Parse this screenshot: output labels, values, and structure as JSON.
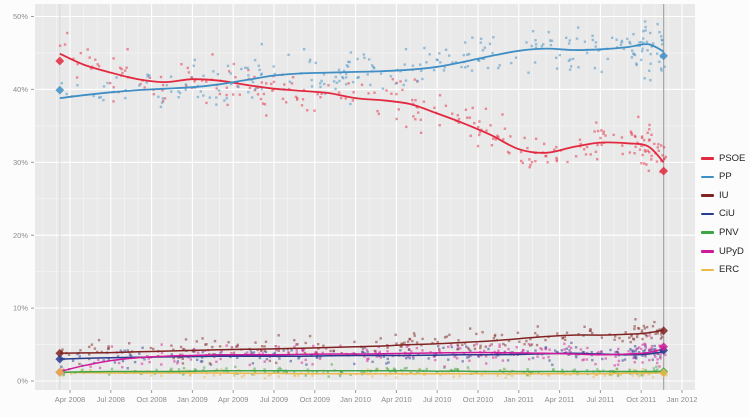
{
  "colors": {
    "figure_bg": "#fcfcfc",
    "panel_bg": "#e9e9e9",
    "grid_major": "#ffffff",
    "grid_minor": "#f3f3f3",
    "axis_text": "#8c8c8c",
    "tick_mark": "#9a9a9a",
    "legend_text": "#222222",
    "ref_line_start": "#dcdcdc",
    "ref_line_end": "#a8a8a8"
  },
  "axes": {
    "y_tick_labels": [
      "0%",
      "10%",
      "20%",
      "30%",
      "40%",
      "50%"
    ],
    "y_tick_values": [
      0,
      10,
      20,
      30,
      40,
      50
    ],
    "x_tick_labels": [
      "Apr 2008",
      "Jul 2008",
      "Oct 2008",
      "Jan 2009",
      "Apr 2009",
      "Jul 2009",
      "Oct 2009",
      "Jan 2010",
      "Apr 2010",
      "Jul 2010",
      "Oct 2010",
      "Jan 2011",
      "Apr 2011",
      "Jul 2011",
      "Oct 2011",
      "Jan 2012"
    ],
    "x_tick_months": [
      0,
      3,
      6,
      9,
      12,
      15,
      18,
      21,
      24,
      27,
      30,
      33,
      36,
      39,
      42,
      45
    ]
  },
  "chart_data": {
    "type": "scatter",
    "title": "",
    "xlabel": "",
    "ylabel": "",
    "ylim": [
      0,
      52
    ],
    "x_axis": "months since April 2008 (poll dates, Apr 2008 - Nov 2011)",
    "legend_position": "right",
    "grid": true,
    "election_markers": {
      "start_month": -0.75,
      "end_month": 43.65
    },
    "trend_months": [
      -0.75,
      1,
      3,
      5,
      7,
      9,
      11,
      13,
      15,
      17,
      19,
      21,
      23,
      25,
      27,
      29,
      31,
      33,
      35,
      37,
      39,
      41,
      42.5,
      43.65
    ],
    "series": [
      {
        "name": "PSOE",
        "color": "#e32940",
        "sigma": 1.5,
        "n_points": 240,
        "n_end_cluster": 30,
        "trend_values": [
          44.9,
          43.4,
          42.3,
          41.4,
          41.0,
          41.4,
          41.2,
          40.6,
          40.1,
          39.8,
          39.5,
          38.8,
          38.5,
          38.0,
          36.7,
          35.3,
          33.7,
          31.8,
          31.3,
          32.1,
          32.7,
          32.6,
          32.2,
          30.0
        ],
        "election_2008": 43.9,
        "election_2011": 28.8
      },
      {
        "name": "PP",
        "color": "#3f8fc5",
        "sigma": 1.5,
        "n_points": 240,
        "n_end_cluster": 30,
        "trend_values": [
          38.8,
          39.2,
          39.6,
          39.9,
          40.1,
          40.3,
          40.7,
          41.3,
          41.9,
          42.2,
          42.3,
          42.4,
          42.5,
          42.7,
          43.1,
          43.8,
          44.6,
          45.3,
          45.6,
          45.4,
          45.5,
          45.8,
          46.2,
          45.2
        ],
        "election_2008": 39.9,
        "election_2011": 44.6
      },
      {
        "name": "IU",
        "color": "#802422",
        "sigma": 0.75,
        "n_points": 190,
        "n_end_cluster": 25,
        "trend_values": [
          3.8,
          3.85,
          3.9,
          4.0,
          4.1,
          4.2,
          4.3,
          4.35,
          4.4,
          4.5,
          4.6,
          4.7,
          4.8,
          5.0,
          5.1,
          5.3,
          5.5,
          5.8,
          6.1,
          6.3,
          6.3,
          6.4,
          6.6,
          7.0
        ],
        "election_2008": 3.8,
        "election_2011": 6.9
      },
      {
        "name": "CiU",
        "color": "#283c8f",
        "sigma": 0.6,
        "n_points": 160,
        "n_end_cluster": 20,
        "trend_values": [
          3.0,
          3.1,
          3.2,
          3.25,
          3.3,
          3.35,
          3.4,
          3.4,
          3.4,
          3.4,
          3.45,
          3.5,
          3.5,
          3.5,
          3.55,
          3.6,
          3.6,
          3.65,
          3.75,
          3.8,
          3.7,
          3.6,
          3.7,
          4.0
        ],
        "election_2008": 3.0,
        "election_2011": 4.2
      },
      {
        "name": "PNV",
        "color": "#3fa444",
        "sigma": 0.3,
        "n_points": 140,
        "n_end_cluster": 10,
        "trend_values": [
          1.2,
          1.25,
          1.3,
          1.3,
          1.3,
          1.35,
          1.4,
          1.4,
          1.4,
          1.4,
          1.4,
          1.4,
          1.4,
          1.4,
          1.35,
          1.35,
          1.3,
          1.3,
          1.3,
          1.3,
          1.3,
          1.3,
          1.3,
          1.3
        ],
        "election_2008": 1.2,
        "election_2011": 1.3
      },
      {
        "name": "UPyD",
        "color": "#d11a9a",
        "sigma": 0.75,
        "n_points": 190,
        "n_end_cluster": 25,
        "trend_values": [
          1.3,
          2.1,
          2.8,
          3.2,
          3.4,
          3.5,
          3.6,
          3.6,
          3.6,
          3.65,
          3.7,
          3.7,
          3.75,
          3.8,
          3.85,
          3.9,
          3.9,
          3.85,
          3.8,
          3.7,
          3.6,
          3.7,
          3.9,
          4.4
        ],
        "election_2008": 1.2,
        "election_2011": 4.7
      },
      {
        "name": "ERC",
        "color": "#ecba4b",
        "sigma": 0.28,
        "n_points": 140,
        "n_end_cluster": 10,
        "trend_values": [
          1.2,
          1.15,
          1.1,
          1.1,
          1.1,
          1.1,
          1.1,
          1.05,
          1.05,
          1.0,
          1.0,
          1.0,
          1.0,
          1.0,
          1.0,
          1.0,
          1.0,
          1.0,
          1.0,
          1.0,
          1.0,
          1.05,
          1.1,
          1.1
        ],
        "election_2008": 1.2,
        "election_2011": 1.1
      }
    ]
  }
}
